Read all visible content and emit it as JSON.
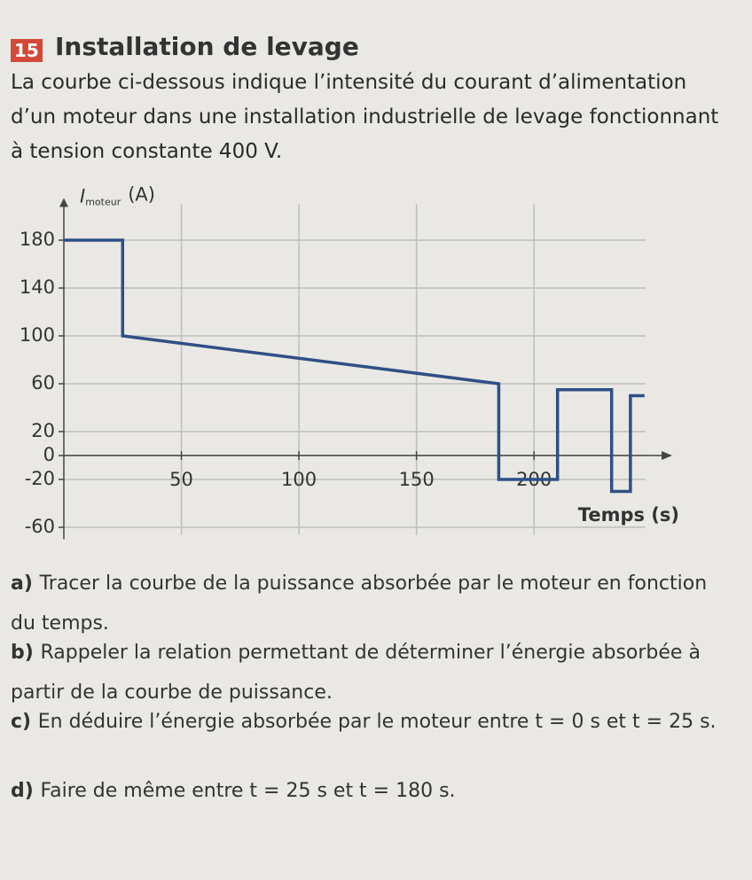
{
  "exercise": {
    "number": "15",
    "title": "Installation de levage",
    "intro": "La courbe ci-dessous indique l’intensité du courant d’alimentation d’un moteur dans une installation industrielle de levage fonctionnant à tension constante 400 V."
  },
  "chart_data": {
    "type": "line",
    "y_label": "I",
    "y_label_sub": "moteur",
    "y_unit": "(A)",
    "x_label": "Temps (s)",
    "x": [
      0,
      25,
      25,
      185,
      185,
      210,
      210,
      233,
      233,
      241,
      241,
      247
    ],
    "series": [
      {
        "color": "#2f4f86",
        "values": [
          180,
          180,
          100,
          60,
          -20,
          -20,
          55,
          55,
          -30,
          -30,
          50,
          50
        ]
      }
    ],
    "xlim": [
      0,
      255
    ],
    "ylim": [
      -70,
      210
    ],
    "xticks": [
      50,
      100,
      150,
      200
    ],
    "yticks": [
      -60,
      -20,
      0,
      20,
      60,
      100,
      140,
      180
    ],
    "grid": true
  },
  "questions": [
    {
      "label": "a)",
      "text": "Tracer la courbe de la puissance absorbée par le moteur en fonction du temps."
    },
    {
      "label": "b)",
      "text": "Rappeler la relation permettant de déterminer l’énergie absorbée à partir de la courbe de puissance."
    },
    {
      "label": "c)",
      "text": "En déduire l’énergie absorbée par le moteur entre t = 0 s et t = 25 s."
    },
    {
      "label": "d)",
      "text": "Faire de même entre t = 25 s et t = 180 s."
    }
  ]
}
